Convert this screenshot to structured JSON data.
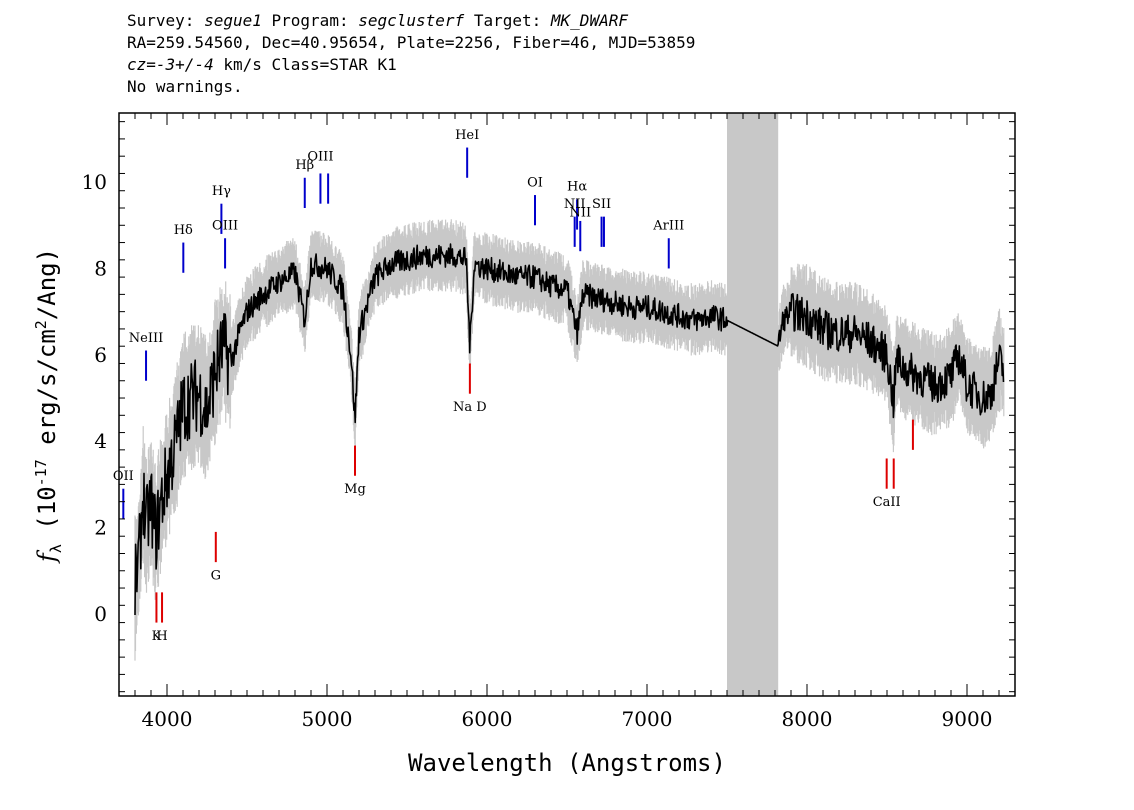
{
  "header": {
    "survey_key": "Survey:",
    "survey": "segue1",
    "program_key": "Program:",
    "program": "segclusterf",
    "target_key": "Target:",
    "target": "MK_DWARF",
    "line2": "RA=259.54560, Dec=40.95654, Plate=2256, Fiber=46, MJD=53859",
    "cz_key": "cz=",
    "cz": "-3+/-4",
    "cz_unit": "km/s",
    "class": "Class=STAR K1",
    "warnings": "No warnings."
  },
  "chart_data": {
    "type": "line",
    "xlabel": "Wavelength (Angstroms)",
    "ylabel": "f_λ (10^-17 erg/s/cm^2/Ang)",
    "xlim": [
      3700,
      9300
    ],
    "ylim": [
      -1.9,
      11.6
    ],
    "x_ticks": [
      4000,
      5000,
      6000,
      7000,
      8000,
      9000
    ],
    "y_ticks": [
      0,
      2,
      4,
      6,
      8,
      10
    ],
    "masked_region": [
      7500,
      7820
    ],
    "colors": {
      "spectrum": "#000000",
      "noise_band": "#c8c8c8",
      "masked": "#c8c8c8",
      "emission": "#0000cc",
      "absorption": "#dd0000"
    },
    "series": [
      {
        "values_x": [
          3800,
          3830,
          3850,
          3870,
          3900,
          3930,
          3950,
          3970,
          4000,
          4050,
          4100,
          4150,
          4200,
          4250,
          4300,
          4350,
          4400,
          4450,
          4500,
          4600,
          4700,
          4800,
          4861,
          4900,
          5000,
          5100,
          5150,
          5175,
          5200,
          5300,
          5400,
          5500,
          5600,
          5700,
          5800,
          5870,
          5893,
          5920,
          6000,
          6100,
          6200,
          6300,
          6400,
          6500,
          6563,
          6600,
          6700,
          6800,
          6900,
          7000,
          7100,
          7200,
          7300,
          7400,
          7500,
          7820,
          7850,
          7900,
          8000,
          8100,
          8200,
          8300,
          8400,
          8500,
          8540,
          8560,
          8600,
          8700,
          8800,
          8900,
          8950,
          9000,
          9100,
          9150,
          9200,
          9230
        ],
        "values_y": [
          0.6,
          1.5,
          2.8,
          2.0,
          2.6,
          1.8,
          2.3,
          2.7,
          3.2,
          3.9,
          4.8,
          5.0,
          5.1,
          4.7,
          5.6,
          6.2,
          5.8,
          6.5,
          7.0,
          7.4,
          7.7,
          7.9,
          6.8,
          8.1,
          8.0,
          7.5,
          6.0,
          4.5,
          6.5,
          7.8,
          8.1,
          8.2,
          8.3,
          8.3,
          8.3,
          8.2,
          6.2,
          8.1,
          8.0,
          7.9,
          7.8,
          7.8,
          7.6,
          7.5,
          6.5,
          7.4,
          7.3,
          7.2,
          7.1,
          7.1,
          7.0,
          6.9,
          6.8,
          6.9,
          6.8,
          6.2,
          6.8,
          7.0,
          6.9,
          6.6,
          6.5,
          6.5,
          6.3,
          6.0,
          4.9,
          5.9,
          5.7,
          5.5,
          5.3,
          5.5,
          6.0,
          5.3,
          5.0,
          5.1,
          5.9,
          5.6
        ]
      }
    ],
    "lines": [
      {
        "label": "OII",
        "wave": 3727,
        "kind": "emission",
        "y0": 2.2,
        "y1": 2.9,
        "label_y": 3.1
      },
      {
        "label": "NeIII",
        "wave": 3869,
        "kind": "emission",
        "y0": 5.4,
        "y1": 6.1,
        "label_y": 6.3
      },
      {
        "label": "Hδ",
        "wave": 4102,
        "kind": "emission",
        "y0": 7.9,
        "y1": 8.6,
        "label_y": 8.8
      },
      {
        "label": "Hγ",
        "wave": 4340,
        "kind": "emission",
        "y0": 8.8,
        "y1": 9.5,
        "label_y": 9.7
      },
      {
        "label": "OIII",
        "wave": 4363,
        "kind": "emission",
        "y0": 8.0,
        "y1": 8.7,
        "label_y": 8.9
      },
      {
        "label": "Hβ",
        "wave": 4861,
        "kind": "emission",
        "y0": 9.4,
        "y1": 10.1,
        "label_y": 10.3
      },
      {
        "label": "OIII",
        "wave": 4959,
        "kind": "emission",
        "y0": 9.5,
        "y1": 10.2,
        "label_y": 10.5
      },
      {
        "label": "OIII",
        "wave": 5007,
        "kind": "emission",
        "y0": 9.5,
        "y1": 10.2,
        "label_y": 10.5
      },
      {
        "label": "HeI",
        "wave": 5876,
        "kind": "emission",
        "y0": 10.1,
        "y1": 10.8,
        "label_y": 11.0
      },
      {
        "label": "OI",
        "wave": 6300,
        "kind": "emission",
        "y0": 9.0,
        "y1": 9.7,
        "label_y": 9.9
      },
      {
        "label": "NII",
        "wave": 6548,
        "kind": "emission",
        "y0": 8.5,
        "y1": 9.2,
        "label_y": 9.4
      },
      {
        "label": "Hα",
        "wave": 6563,
        "kind": "emission",
        "y0": 8.9,
        "y1": 9.6,
        "label_y": 9.8
      },
      {
        "label": "NII",
        "wave": 6583,
        "kind": "emission",
        "y0": 8.4,
        "y1": 9.1,
        "label_y": 9.2
      },
      {
        "label": "SII",
        "wave": 6716,
        "kind": "emission",
        "y0": 8.5,
        "y1": 9.2,
        "label_y": 9.4
      },
      {
        "label": "SII",
        "wave": 6731,
        "kind": "emission",
        "y0": 8.5,
        "y1": 9.2,
        "label_y": 9.4
      },
      {
        "label": "ArIII",
        "wave": 7136,
        "kind": "emission",
        "y0": 8.0,
        "y1": 8.7,
        "label_y": 8.9
      },
      {
        "label": "K",
        "wave": 3934,
        "kind": "absorption",
        "y0": -0.2,
        "y1": 0.5,
        "label_y": -0.6
      },
      {
        "label": "H",
        "wave": 3969,
        "kind": "absorption",
        "y0": -0.2,
        "y1": 0.5,
        "label_y": -0.6
      },
      {
        "label": "G",
        "wave": 4305,
        "kind": "absorption",
        "y0": 1.2,
        "y1": 1.9,
        "label_y": 0.8
      },
      {
        "label": "Mg",
        "wave": 5175,
        "kind": "absorption",
        "y0": 3.2,
        "y1": 3.9,
        "label_y": 2.8
      },
      {
        "label": "Na D",
        "wave": 5893,
        "kind": "absorption",
        "y0": 5.1,
        "y1": 5.8,
        "label_y": 4.7
      },
      {
        "label": "CaII",
        "wave": 8498,
        "kind": "absorption",
        "y0": 2.9,
        "y1": 3.6,
        "label_y": 2.5
      },
      {
        "label": "CaII",
        "wave": 8542,
        "kind": "absorption",
        "y0": 2.9,
        "y1": 3.6,
        "label_y": 2.5
      },
      {
        "label": "CaII",
        "wave": 8662,
        "kind": "absorption",
        "y0": 3.8,
        "y1": 4.5,
        "label_y": 2.5
      }
    ]
  }
}
